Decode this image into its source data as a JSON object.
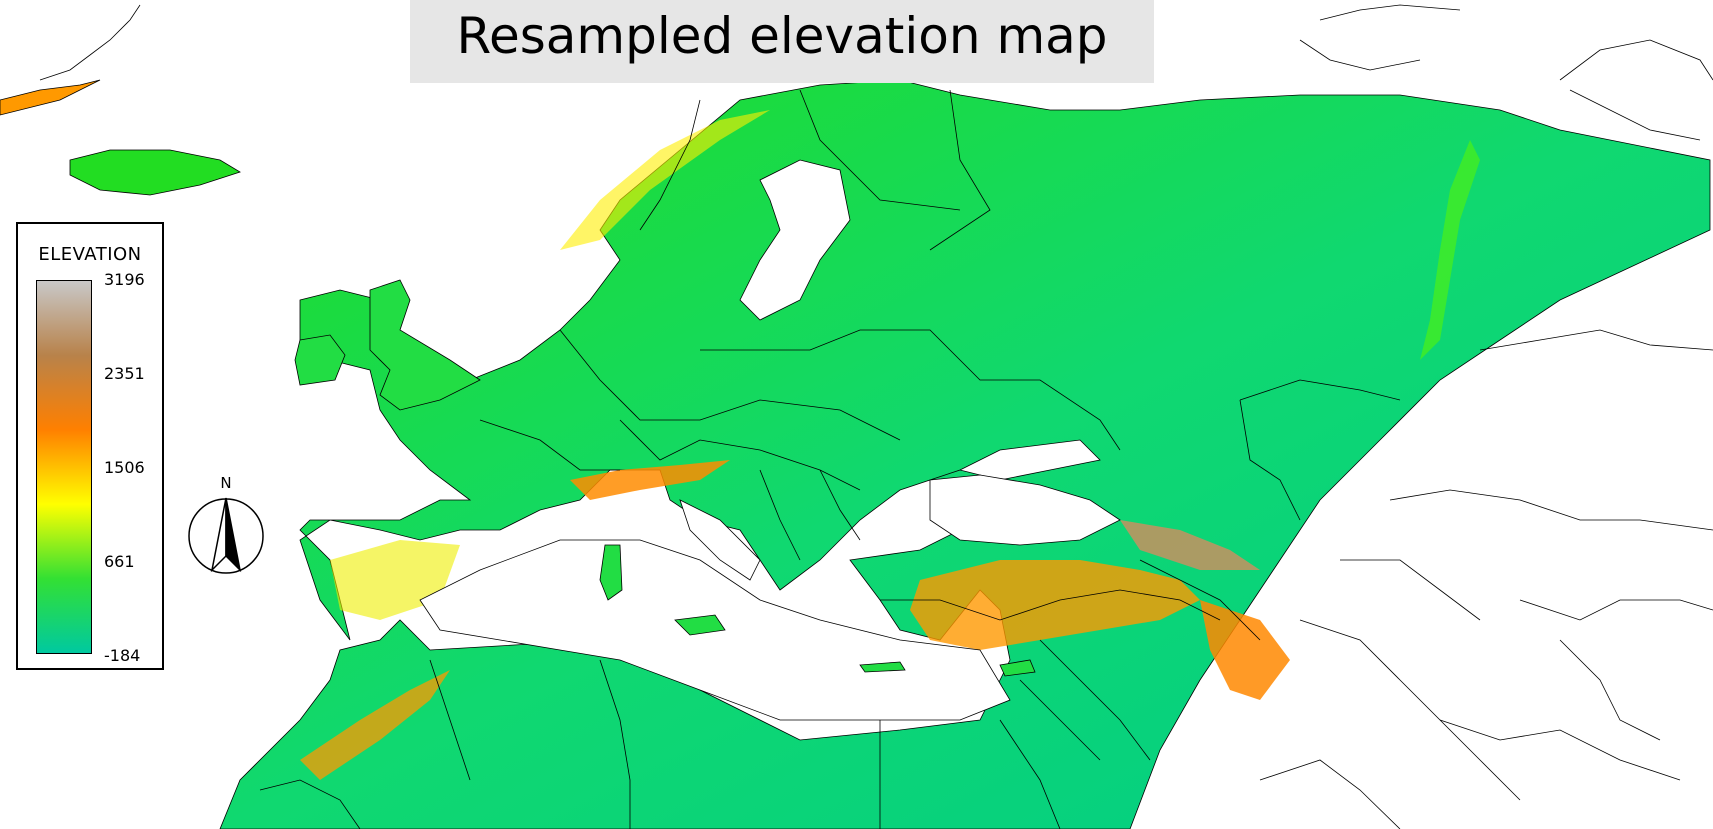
{
  "map": {
    "title": "Resampled elevation map",
    "colors": {
      "ocean": "#ffffff",
      "low": "#00c996",
      "mid": "#33dd33",
      "high": "#ffff00",
      "higher": "#ff8000",
      "peak": "#c0c0c0",
      "border": "#000000"
    }
  },
  "legend": {
    "title": "ELEVATION",
    "ticks": [
      "3196",
      "2351",
      "1506",
      "661",
      "-184"
    ],
    "gradient": [
      "#c8c8c8",
      "#b8824a",
      "#ff8000",
      "#ffff00",
      "#33e033",
      "#00c9a0"
    ]
  },
  "north_arrow": {
    "label": "N"
  }
}
